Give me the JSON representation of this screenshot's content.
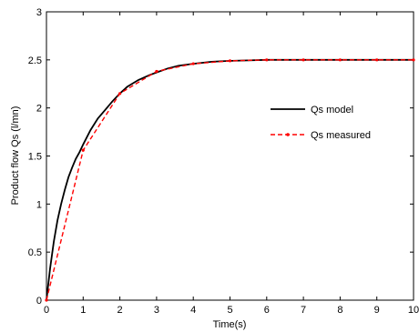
{
  "chart_data": {
    "type": "line",
    "title": "",
    "xlabel": "Time(s)",
    "ylabel": "Product flow Qs  (l/mn)",
    "xlim": [
      0,
      10
    ],
    "ylim": [
      0,
      3
    ],
    "x_ticks": [
      0,
      1,
      2,
      3,
      4,
      5,
      6,
      7,
      8,
      9,
      10
    ],
    "y_ticks": [
      0,
      0.5,
      1,
      1.5,
      2,
      2.5,
      3
    ],
    "x_tick_labels": [
      "0",
      "1",
      "2",
      "3",
      "4",
      "5",
      "6",
      "7",
      "8",
      "9",
      "10"
    ],
    "y_tick_labels": [
      "0",
      "0.5",
      "1",
      "1.5",
      "2",
      "2.5",
      "3"
    ],
    "grid": false,
    "legend": "right",
    "series": [
      {
        "name": "Qs model",
        "color": "#000000",
        "style": "solid",
        "x": [
          0,
          0.1,
          0.2,
          0.3,
          0.4,
          0.5,
          0.6,
          0.7,
          0.8,
          0.9,
          1.0,
          1.2,
          1.4,
          1.6,
          1.8,
          2.0,
          2.2,
          2.5,
          2.8,
          3.0,
          3.3,
          3.6,
          4.0,
          4.5,
          5.0,
          5.5,
          6.0,
          7.0,
          8.0,
          9.0,
          10.0
        ],
        "y": [
          0,
          0.33,
          0.61,
          0.83,
          1.0,
          1.15,
          1.28,
          1.38,
          1.47,
          1.54,
          1.62,
          1.77,
          1.89,
          1.98,
          2.07,
          2.15,
          2.22,
          2.29,
          2.34,
          2.37,
          2.41,
          2.44,
          2.46,
          2.48,
          2.49,
          2.495,
          2.5,
          2.5,
          2.5,
          2.5,
          2.5
        ]
      },
      {
        "name": "Qs measured",
        "color": "#ff0000",
        "style": "dashed",
        "marker": "dot",
        "x": [
          0,
          1.0,
          2.0,
          3.0,
          4.0,
          5.0,
          6.0,
          7.0,
          8.0,
          9.0,
          10.0
        ],
        "y": [
          0,
          1.56,
          2.15,
          2.38,
          2.46,
          2.49,
          2.5,
          2.5,
          2.5,
          2.5,
          2.5
        ]
      }
    ]
  }
}
